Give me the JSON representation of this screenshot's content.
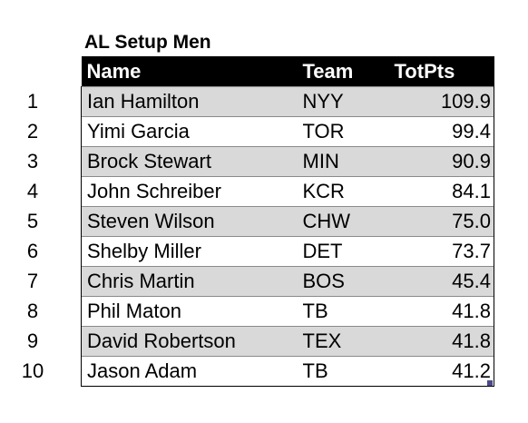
{
  "title": "AL Setup Men",
  "columns": {
    "name": "Name",
    "team": "Team",
    "pts": "TotPts"
  },
  "rows": [
    {
      "num": "1",
      "name": "Ian Hamilton",
      "team": "NYY",
      "pts": "109.9"
    },
    {
      "num": "2",
      "name": "Yimi Garcia",
      "team": "TOR",
      "pts": "99.4"
    },
    {
      "num": "3",
      "name": "Brock Stewart",
      "team": "MIN",
      "pts": "90.9"
    },
    {
      "num": "4",
      "name": "John Schreiber",
      "team": "KCR",
      "pts": "84.1"
    },
    {
      "num": "5",
      "name": "Steven Wilson",
      "team": "CHW",
      "pts": "75.0"
    },
    {
      "num": "6",
      "name": "Shelby Miller",
      "team": "DET",
      "pts": "73.7"
    },
    {
      "num": "7",
      "name": "Chris Martin",
      "team": "BOS",
      "pts": "45.4"
    },
    {
      "num": "8",
      "name": "Phil Maton",
      "team": "TB",
      "pts": "41.8"
    },
    {
      "num": "9",
      "name": "David Robertson",
      "team": "TEX",
      "pts": "41.8"
    },
    {
      "num": "10",
      "name": "Jason Adam",
      "team": "TB",
      "pts": "41.2"
    }
  ],
  "colors": {
    "header_bg": "#000000",
    "header_text": "#ffffff",
    "band_row": "#d9d9d9",
    "plain_row": "#ffffff"
  }
}
